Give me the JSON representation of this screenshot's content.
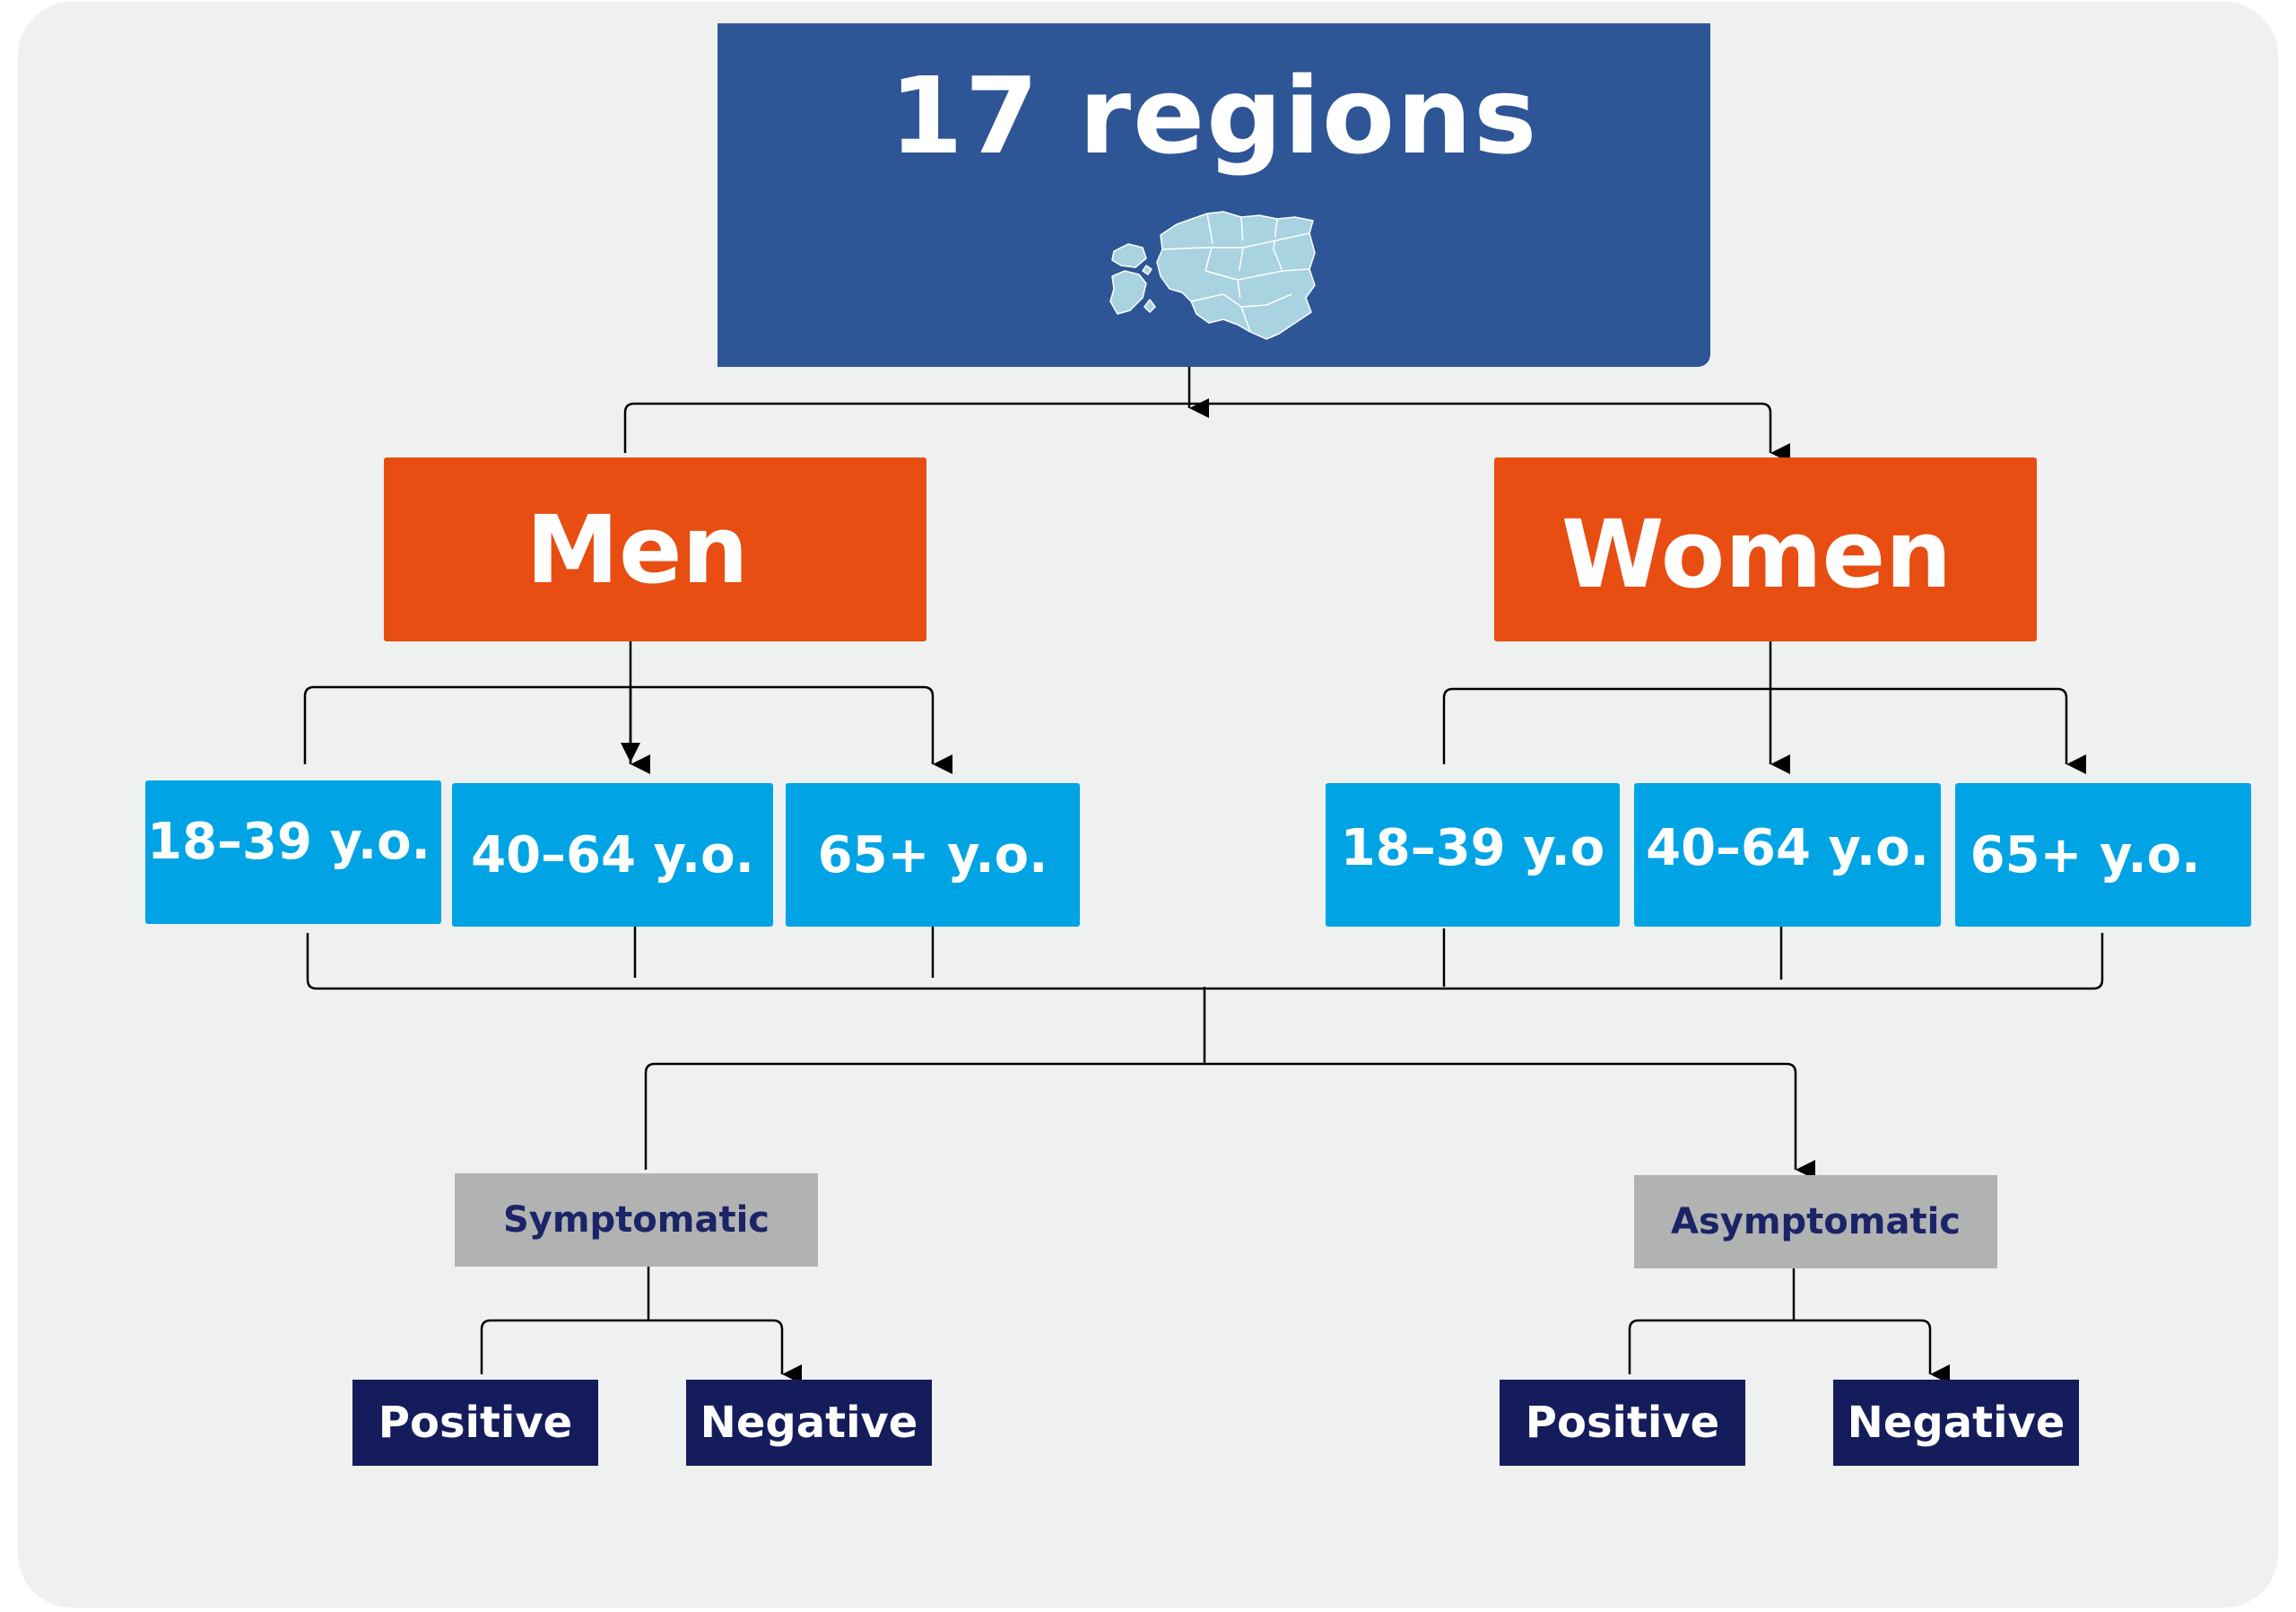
{
  "root": {
    "title": "17 regions",
    "map_icon": "estonia-map-icon"
  },
  "men": {
    "label": "Men",
    "ages": [
      "18–39 y.o.",
      "40–64 y.o.",
      "65+ y.o."
    ]
  },
  "women": {
    "label": "Women",
    "ages": [
      "18–39 y.o",
      "40–64 y.o.",
      "65+ y.o."
    ]
  },
  "symptomatic": {
    "label": "Symptomatic",
    "positive": "Positive",
    "negative": "Negative"
  },
  "asymptomatic": {
    "label": "Asymptomatic",
    "positive": "Positive",
    "negative": "Negative"
  },
  "colors": {
    "root": "#2e5696",
    "gender": "#e84d11",
    "age": "#00a4e5",
    "status": "#b1b2b2",
    "result": "#141c5c",
    "map": "#a9d3e0"
  }
}
